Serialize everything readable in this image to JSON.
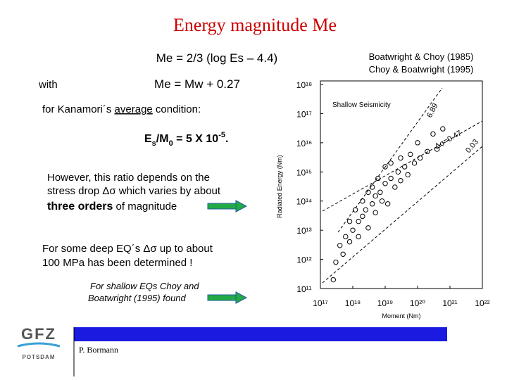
{
  "title": "Energy magnitude Me",
  "body": {
    "formula1": "Me = 2/3 (log Es – 4.4)",
    "with": "with",
    "formula2": "Me = Mw + 0.27",
    "condition": [
      "for Kanamori´s ",
      "average",
      " condition:"
    ],
    "ratio": [
      "E",
      "s",
      "/M",
      "0",
      " = 5 X 10",
      "-5",
      "."
    ],
    "however": [
      "However, this ratio depends on the",
      "stress drop Δσ which varies by about"
    ],
    "orders": [
      "three orders",
      " of magnitude"
    ],
    "deep": [
      "For some deep EQ´s Δσ up to about",
      "100 MPa has been determined !"
    ],
    "shallow": [
      "For shallow EQs Choy and",
      "Boatwright (1995) found"
    ],
    "references": [
      "Boatwright & Choy (1985)",
      "Choy & Boatwright (1995)"
    ]
  },
  "chart_data": {
    "type": "scatter",
    "title": "Shallow Seismicity",
    "x_label": "Moment (Nm)",
    "y_label": "Radiated Energy (Nm)",
    "xscale": "log",
    "yscale": "log",
    "xlim": [
      1e+17,
      1e+22
    ],
    "ylim": [
      100000000000.0,
      1e+18
    ],
    "xticks": [
      {
        "value": 1e+17,
        "label": "10¹⁷"
      },
      {
        "value": 1e+18,
        "label": "10¹⁸"
      },
      {
        "value": 1e+19,
        "label": "10¹⁹"
      },
      {
        "value": 1e+20,
        "label": "10²⁰"
      },
      {
        "value": 1e+21,
        "label": "10²¹"
      },
      {
        "value": 1e+22,
        "label": "10²²"
      }
    ],
    "yticks": [
      {
        "value": 100000000000.0,
        "label": "10¹¹"
      },
      {
        "value": 1000000000000.0,
        "label": "10¹²"
      },
      {
        "value": 10000000000000.0,
        "label": "10¹³"
      },
      {
        "value": 100000000000000.0,
        "label": "10¹⁴"
      },
      {
        "value": 1000000000000000.0,
        "label": "10¹⁵"
      },
      {
        "value": 1e+16,
        "label": "10¹⁶"
      },
      {
        "value": 1e+17,
        "label": "10¹⁷"
      },
      {
        "value": 1e+18,
        "label": "10¹⁸"
      }
    ],
    "annotations": [
      "6.89",
      "Δσ=0.47",
      "0.03"
    ],
    "color": "#000000",
    "x": [
      2.5e+17,
      3e+17,
      4e+17,
      5e+17,
      6e+17,
      8e+17,
      8e+17,
      1e+18,
      1.2e+18,
      1.5e+18,
      1.5e+18,
      2e+18,
      2e+18,
      2.5e+18,
      3e+18,
      3e+18,
      4e+18,
      4e+18,
      5e+18,
      5e+18,
      6e+18,
      7e+18,
      8e+18,
      1e+19,
      1e+19,
      1.2e+19,
      1.5e+19,
      1.5e+19,
      2e+19,
      2.5e+19,
      3e+19,
      3e+19,
      4e+19,
      5e+19,
      6e+19,
      8e+19,
      1e+20,
      1.2e+20,
      2e+20,
      3e+20,
      4e+20,
      6e+20
    ],
    "values": [
      200000000000.0,
      800000000000.0,
      3000000000000.0,
      1500000000000.0,
      6000000000000.0,
      20000000000000.0,
      4000000000000.0,
      10000000000000.0,
      50000000000000.0,
      20000000000000.0,
      6000000000000.0,
      100000000000000.0,
      30000000000000.0,
      50000000000000.0,
      200000000000000.0,
      12000000000000.0,
      80000000000000.0,
      300000000000000.0,
      150000000000000.0,
      40000000000000.0,
      600000000000000.0,
      200000000000000.0,
      100000000000000.0,
      400000000000000.0,
      1500000000000000.0,
      80000000000000.0,
      600000000000000.0,
      2000000000000000.0,
      300000000000000.0,
      1000000000000000.0,
      500000000000000.0,
      3000000000000000.0,
      1500000000000000.0,
      800000000000000.0,
      4000000000000000.0,
      2000000000000000.0,
      1e+16,
      3000000000000000.0,
      5000000000000000.0,
      2e+16,
      6000000000000000.0,
      3e+16
    ]
  },
  "footer": {
    "logo": "GFZ",
    "logo_sub": "POTSDAM",
    "author": "P. Bormann"
  }
}
